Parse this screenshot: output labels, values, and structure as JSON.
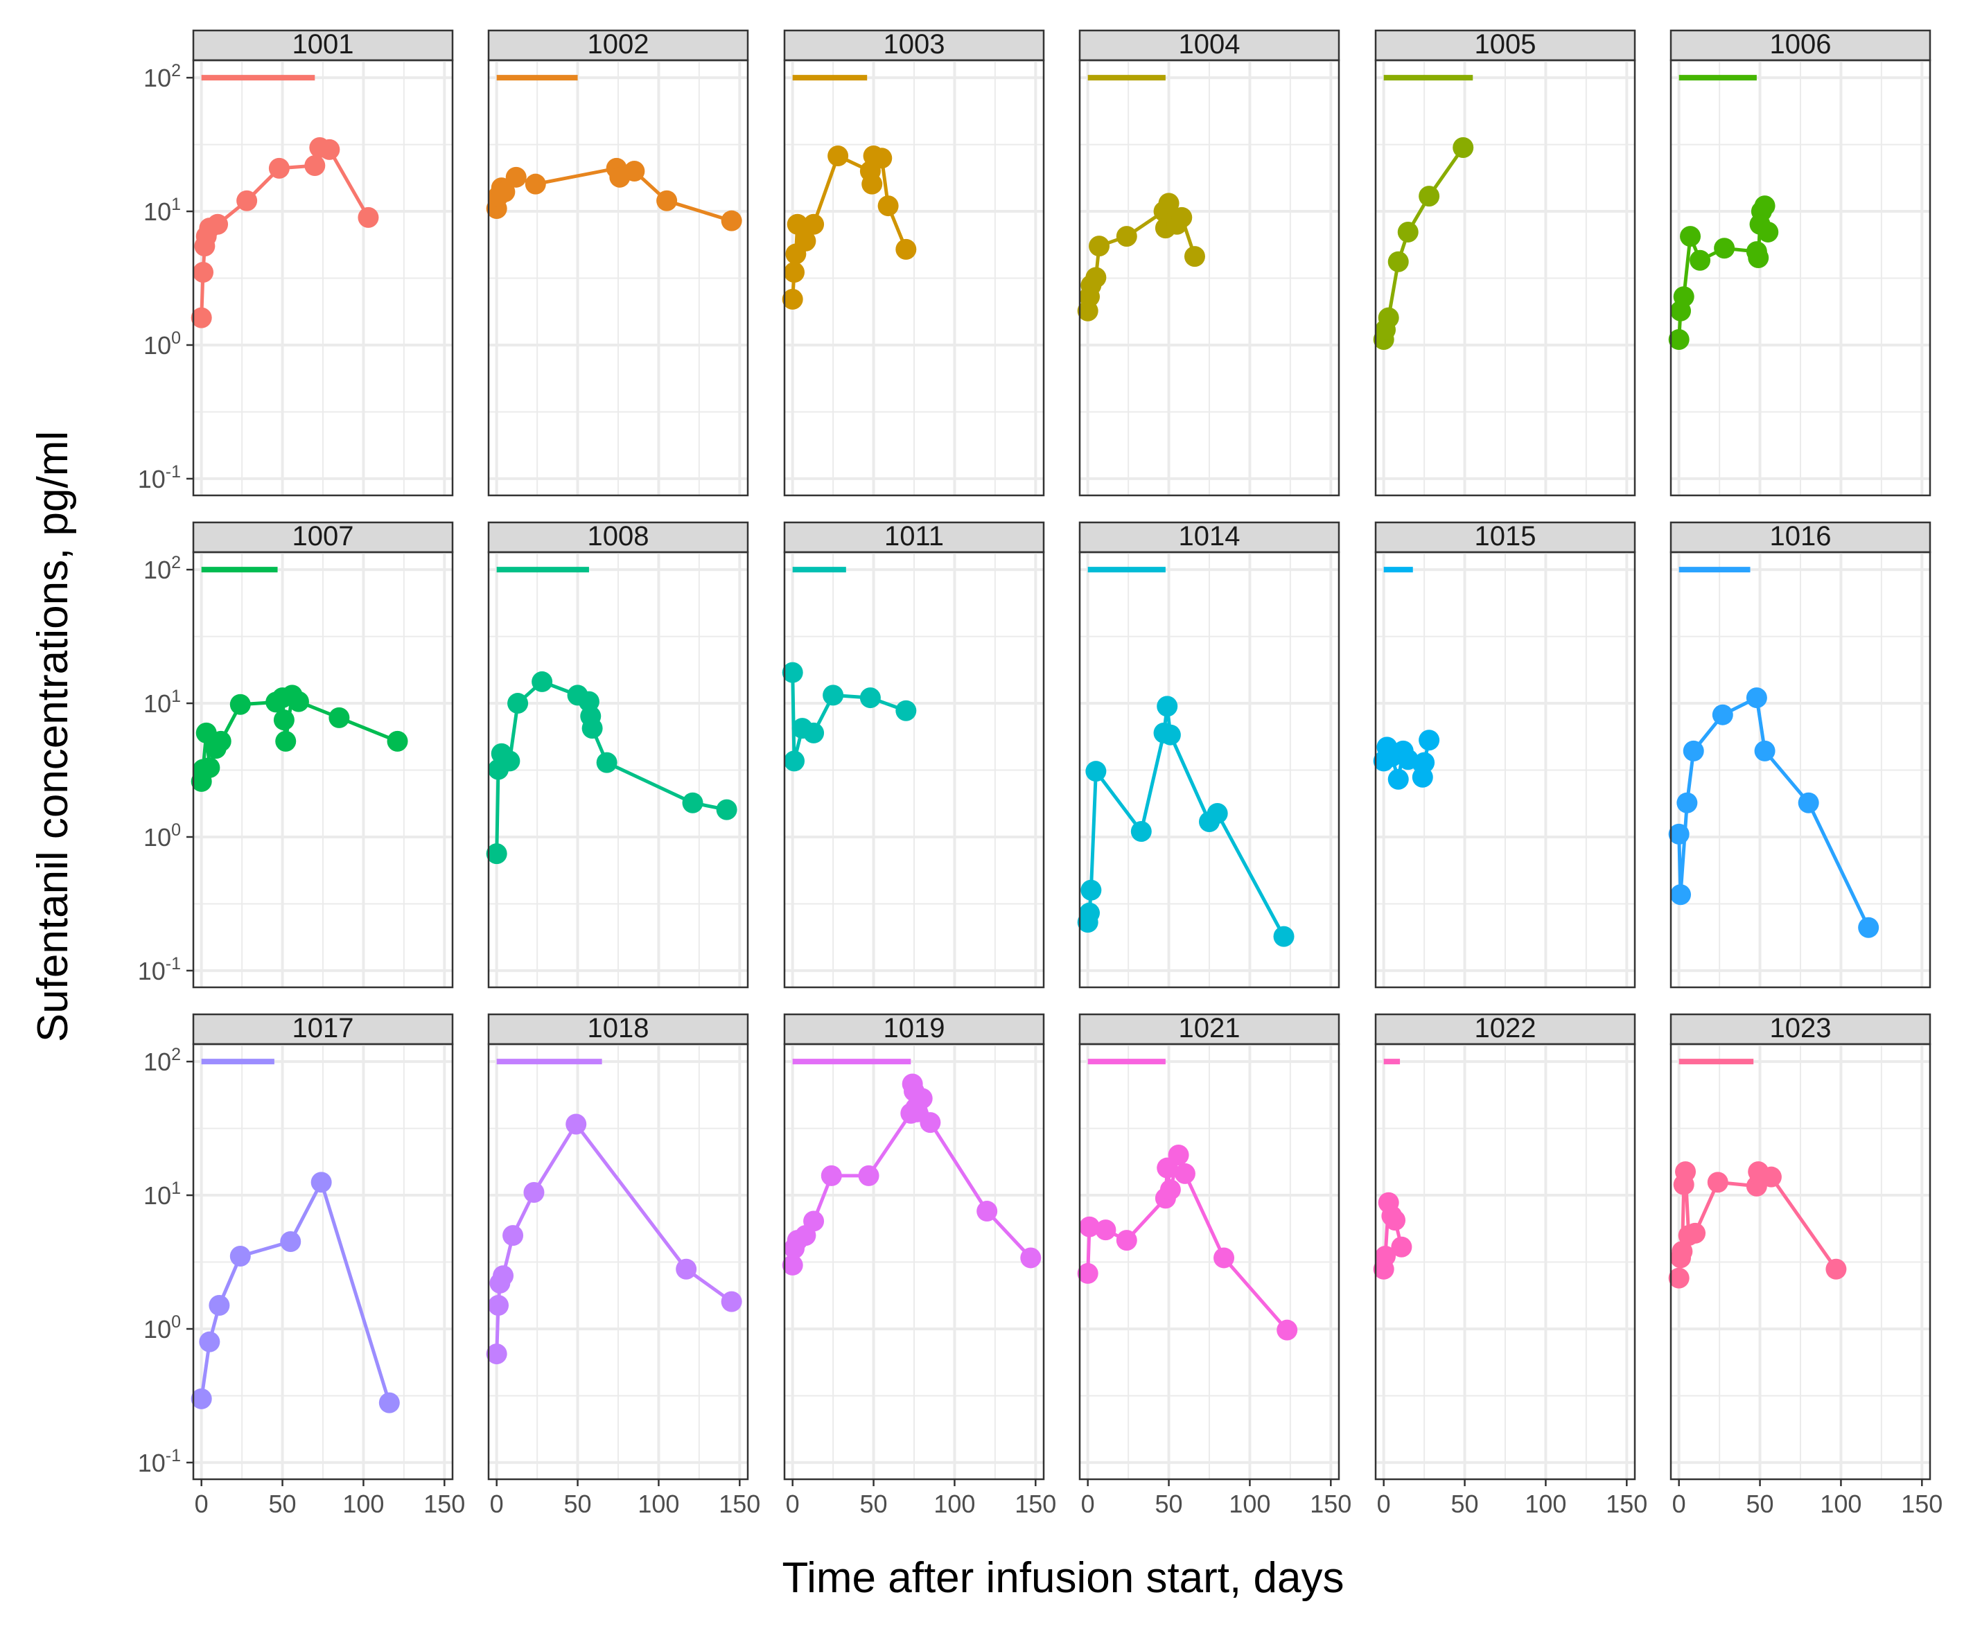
{
  "chart_data": {
    "type": "line",
    "facet_layout": "3 rows x 6 columns",
    "xlabel": "Time after infusion start, days",
    "ylabel": "Sufentanil concentrations, pg/ml",
    "x_scale": "linear",
    "y_scale": "log10",
    "xlim": [
      -5,
      155
    ],
    "ylim": [
      0.075,
      135
    ],
    "x_ticks": [
      0,
      50,
      100,
      150
    ],
    "x_tick_labels": [
      "0",
      "50",
      "100",
      "150"
    ],
    "y_ticks": [
      0.1,
      1,
      10,
      100
    ],
    "y_tick_labels": [
      {
        "base": "10",
        "exp": "-1"
      },
      {
        "base": "10",
        "exp": "0"
      },
      {
        "base": "10",
        "exp": "1"
      },
      {
        "base": "10",
        "exp": "2"
      }
    ],
    "grid": true,
    "legend": "none",
    "duration_bar_y": 100,
    "panels": [
      {
        "id": "1001",
        "color": "#F8766D",
        "infusion_end": 70,
        "points": [
          [
            0,
            1.6
          ],
          [
            1,
            3.5
          ],
          [
            2,
            5.5
          ],
          [
            3,
            6.5
          ],
          [
            5,
            7.5
          ],
          [
            10,
            8
          ],
          [
            28,
            12
          ],
          [
            48,
            21
          ],
          [
            70,
            22
          ],
          [
            73,
            30
          ],
          [
            79,
            29
          ],
          [
            103,
            9
          ]
        ]
      },
      {
        "id": "1002",
        "color": "#E7851E",
        "infusion_end": 50,
        "points": [
          [
            0,
            10.5
          ],
          [
            1,
            13
          ],
          [
            3,
            15
          ],
          [
            5,
            14
          ],
          [
            12,
            18
          ],
          [
            24,
            16
          ],
          [
            74,
            21
          ],
          [
            76,
            18
          ],
          [
            85,
            20
          ],
          [
            105,
            12
          ],
          [
            145,
            8.5
          ]
        ]
      },
      {
        "id": "1003",
        "color": "#D09400",
        "infusion_end": 46,
        "points": [
          [
            0,
            2.2
          ],
          [
            1,
            3.5
          ],
          [
            2,
            4.8
          ],
          [
            3,
            8
          ],
          [
            8,
            6
          ],
          [
            13,
            8
          ],
          [
            28,
            26
          ],
          [
            48,
            20
          ],
          [
            49,
            16
          ],
          [
            50,
            26
          ],
          [
            55,
            25
          ],
          [
            59,
            11
          ],
          [
            70,
            5.2
          ]
        ]
      },
      {
        "id": "1004",
        "color": "#B2A100",
        "infusion_end": 48,
        "points": [
          [
            0,
            1.8
          ],
          [
            1,
            2.3
          ],
          [
            2,
            2.8
          ],
          [
            5,
            3.2
          ],
          [
            7,
            5.5
          ],
          [
            24,
            6.5
          ],
          [
            47,
            10
          ],
          [
            48,
            7.5
          ],
          [
            50,
            11.5
          ],
          [
            55,
            8
          ],
          [
            58,
            9
          ],
          [
            66,
            4.6
          ]
        ]
      },
      {
        "id": "1005",
        "color": "#89AC00",
        "infusion_end": 55,
        "points": [
          [
            0,
            1.1
          ],
          [
            1,
            1.3
          ],
          [
            3,
            1.6
          ],
          [
            9,
            4.2
          ],
          [
            15,
            7
          ],
          [
            28,
            13
          ],
          [
            49,
            30
          ]
        ]
      },
      {
        "id": "1006",
        "color": "#45B500",
        "infusion_end": 48,
        "points": [
          [
            0,
            1.1
          ],
          [
            1,
            1.8
          ],
          [
            3,
            2.3
          ],
          [
            7,
            6.5
          ],
          [
            13,
            4.3
          ],
          [
            28,
            5.3
          ],
          [
            48,
            5
          ],
          [
            49,
            4.5
          ],
          [
            50,
            8
          ],
          [
            51,
            10
          ],
          [
            53,
            11
          ],
          [
            55,
            7
          ]
        ]
      },
      {
        "id": "1007",
        "color": "#00BC51",
        "infusion_end": 47,
        "points": [
          [
            0,
            2.6
          ],
          [
            1,
            3.2
          ],
          [
            3,
            6
          ],
          [
            5,
            3.3
          ],
          [
            9,
            4.6
          ],
          [
            12,
            5.2
          ],
          [
            24,
            9.8
          ],
          [
            46,
            10.2
          ],
          [
            50,
            11
          ],
          [
            51,
            7.5
          ],
          [
            52,
            5.2
          ],
          [
            56,
            11.5
          ],
          [
            60,
            10.3
          ],
          [
            85,
            7.8
          ],
          [
            121,
            5.2
          ]
        ]
      },
      {
        "id": "1008",
        "color": "#00C087",
        "infusion_end": 57,
        "points": [
          [
            0,
            0.75
          ],
          [
            1,
            3.2
          ],
          [
            3,
            4.2
          ],
          [
            8,
            3.7
          ],
          [
            13,
            10
          ],
          [
            28,
            14.5
          ],
          [
            50,
            11.5
          ],
          [
            57,
            10.3
          ],
          [
            58,
            8
          ],
          [
            59,
            6.5
          ],
          [
            68,
            3.6
          ],
          [
            121,
            1.8
          ],
          [
            142,
            1.6
          ]
        ]
      },
      {
        "id": "1011",
        "color": "#00C0B2",
        "infusion_end": 33,
        "points": [
          [
            0,
            17
          ],
          [
            1,
            3.7
          ],
          [
            6,
            6.5
          ],
          [
            13,
            6
          ],
          [
            25,
            11.5
          ],
          [
            48,
            11
          ],
          [
            70,
            8.8
          ]
        ]
      },
      {
        "id": "1014",
        "color": "#00BCD6",
        "infusion_end": 48,
        "points": [
          [
            0,
            0.23
          ],
          [
            1,
            0.27
          ],
          [
            2,
            0.4
          ],
          [
            5,
            3.1
          ],
          [
            33,
            1.1
          ],
          [
            47,
            6
          ],
          [
            49,
            9.5
          ],
          [
            51,
            5.8
          ],
          [
            75,
            1.3
          ],
          [
            80,
            1.5
          ],
          [
            121,
            0.18
          ]
        ]
      },
      {
        "id": "1015",
        "color": "#00B3F2",
        "infusion_end": 18,
        "points": [
          [
            0,
            3.7
          ],
          [
            2,
            4.7
          ],
          [
            5,
            4
          ],
          [
            9,
            2.7
          ],
          [
            12,
            4.4
          ],
          [
            15,
            3.8
          ],
          [
            24,
            2.8
          ],
          [
            25,
            3.6
          ],
          [
            28,
            5.3
          ]
        ]
      },
      {
        "id": "1016",
        "color": "#29A3FF",
        "infusion_end": 44,
        "points": [
          [
            0,
            1.05
          ],
          [
            1,
            0.37
          ],
          [
            5,
            1.8
          ],
          [
            9,
            4.4
          ],
          [
            27,
            8.2
          ],
          [
            48,
            11
          ],
          [
            53,
            4.4
          ],
          [
            80,
            1.8
          ],
          [
            117,
            0.21
          ]
        ]
      },
      {
        "id": "1017",
        "color": "#9C8DFF",
        "infusion_end": 45,
        "points": [
          [
            0,
            0.3
          ],
          [
            5,
            0.8
          ],
          [
            11,
            1.5
          ],
          [
            24,
            3.5
          ],
          [
            55,
            4.5
          ],
          [
            74,
            12.5
          ],
          [
            116,
            0.28
          ]
        ]
      },
      {
        "id": "1018",
        "color": "#C27FFF",
        "infusion_end": 65,
        "points": [
          [
            0,
            0.65
          ],
          [
            1,
            1.5
          ],
          [
            2,
            2.2
          ],
          [
            4,
            2.5
          ],
          [
            10,
            5
          ],
          [
            23,
            10.5
          ],
          [
            49,
            34
          ],
          [
            117,
            2.8
          ],
          [
            145,
            1.6
          ]
        ]
      },
      {
        "id": "1019",
        "color": "#E26EF7",
        "infusion_end": 73,
        "points": [
          [
            0,
            3
          ],
          [
            1,
            4
          ],
          [
            3,
            4.6
          ],
          [
            8,
            5
          ],
          [
            13,
            6.4
          ],
          [
            24,
            14
          ],
          [
            47,
            14
          ],
          [
            73,
            41
          ],
          [
            74,
            68
          ],
          [
            75,
            60
          ],
          [
            76,
            45
          ],
          [
            77,
            42
          ],
          [
            80,
            53
          ],
          [
            85,
            35
          ],
          [
            120,
            7.6
          ],
          [
            147,
            3.4
          ]
        ]
      },
      {
        "id": "1021",
        "color": "#F863DF",
        "infusion_end": 48,
        "points": [
          [
            0,
            2.6
          ],
          [
            1,
            5.8
          ],
          [
            11,
            5.5
          ],
          [
            24,
            4.6
          ],
          [
            48,
            9.5
          ],
          [
            49,
            16
          ],
          [
            51,
            11
          ],
          [
            56,
            20
          ],
          [
            60,
            14.5
          ],
          [
            84,
            3.4
          ],
          [
            123,
            0.98
          ]
        ]
      },
      {
        "id": "1022",
        "color": "#FF62BF",
        "infusion_end": 10,
        "points": [
          [
            0,
            2.8
          ],
          [
            1,
            3.5
          ],
          [
            3,
            8.8
          ],
          [
            5,
            7
          ],
          [
            7,
            6.5
          ],
          [
            11,
            4.1
          ]
        ]
      },
      {
        "id": "1023",
        "color": "#FF6A98",
        "infusion_end": 46,
        "points": [
          [
            0,
            2.4
          ],
          [
            1,
            3.4
          ],
          [
            2,
            3.8
          ],
          [
            3,
            12
          ],
          [
            4,
            15
          ],
          [
            6,
            5
          ],
          [
            10,
            5.2
          ],
          [
            24,
            12.5
          ],
          [
            48,
            11.7
          ],
          [
            49,
            15
          ],
          [
            50,
            14
          ],
          [
            57,
            13.7
          ],
          [
            97,
            2.8
          ]
        ]
      }
    ]
  }
}
